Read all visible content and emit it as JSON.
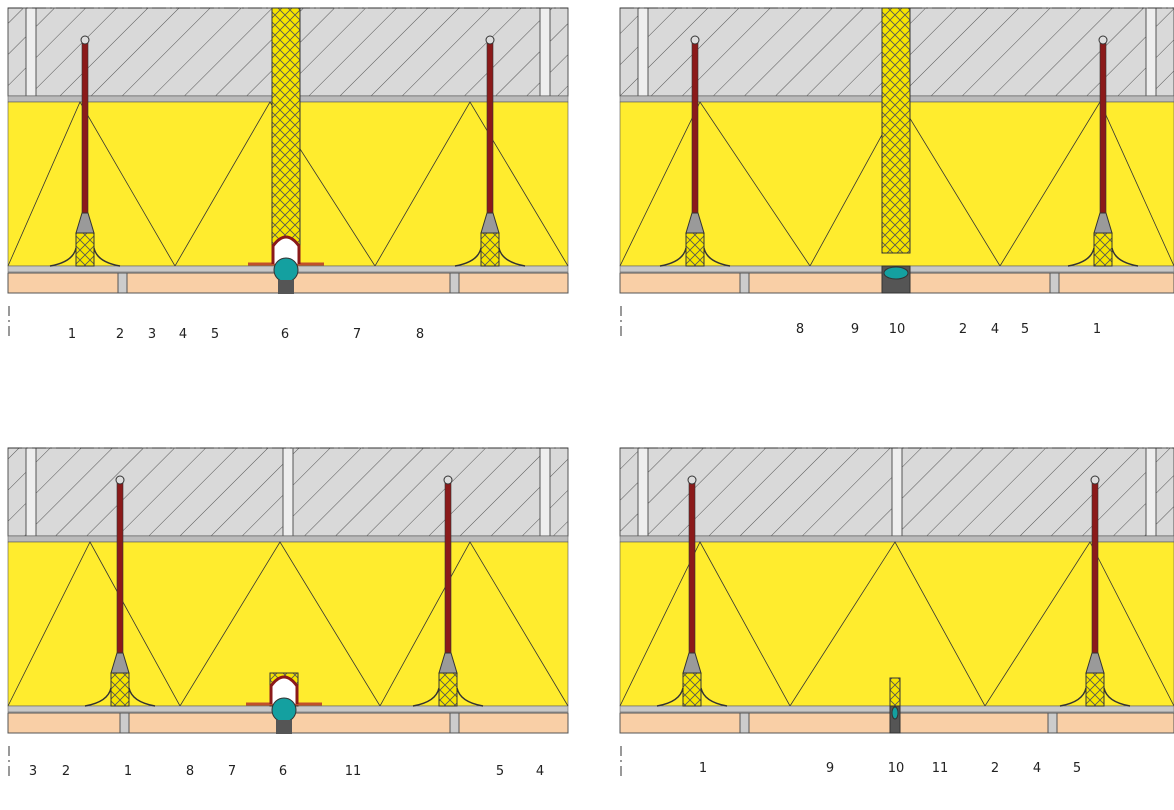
{
  "panels": [
    {
      "labels": [
        "1",
        "2",
        "3",
        "4",
        "5",
        "6",
        "7",
        "8"
      ]
    },
    {
      "labels": [
        "8",
        "9",
        "10",
        "2",
        "4",
        "5",
        "1"
      ]
    },
    {
      "labels": [
        "3",
        "2",
        "1",
        "8",
        "7",
        "6",
        "11",
        "5",
        "4"
      ]
    },
    {
      "labels": [
        "1",
        "9",
        "10",
        "11",
        "2",
        "4",
        "5"
      ]
    }
  ]
}
